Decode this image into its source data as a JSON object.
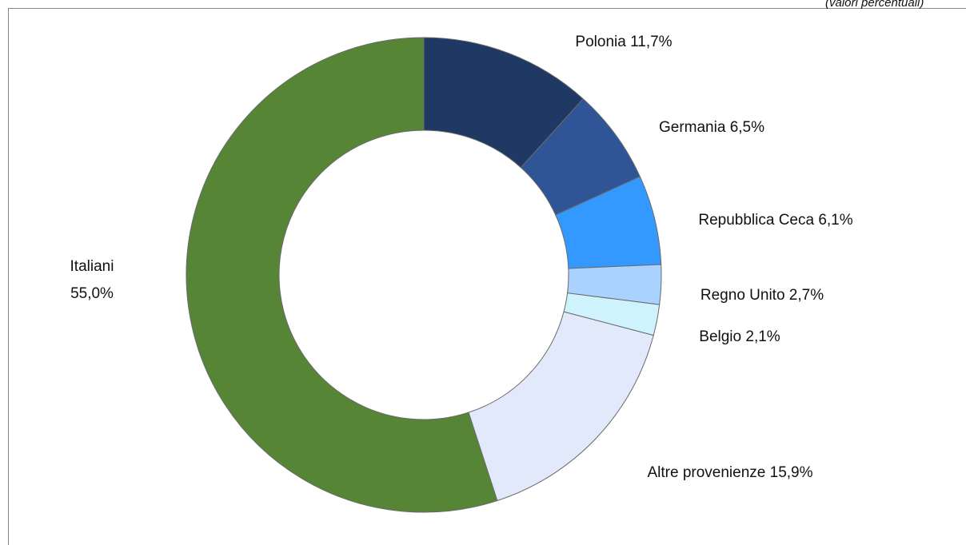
{
  "chart_data": {
    "type": "donut",
    "subtitle": "(valori percentuali)",
    "categories": [
      "Polonia",
      "Germania",
      "Repubblica Ceca",
      "Regno Unito",
      "Belgio",
      "Altre provenienze",
      "Italiani"
    ],
    "values": [
      11.7,
      6.5,
      6.1,
      2.7,
      2.1,
      15.9,
      55.0
    ],
    "value_labels": [
      "11,7%",
      "6,5%",
      "6,1%",
      "2,7%",
      "2,1%",
      "15,9%",
      "55,0%"
    ],
    "colors": [
      "#203864",
      "#2f5597",
      "#3399ff",
      "#a9d2ff",
      "#cff3fd",
      "#e1e9fa",
      "#568535"
    ]
  }
}
